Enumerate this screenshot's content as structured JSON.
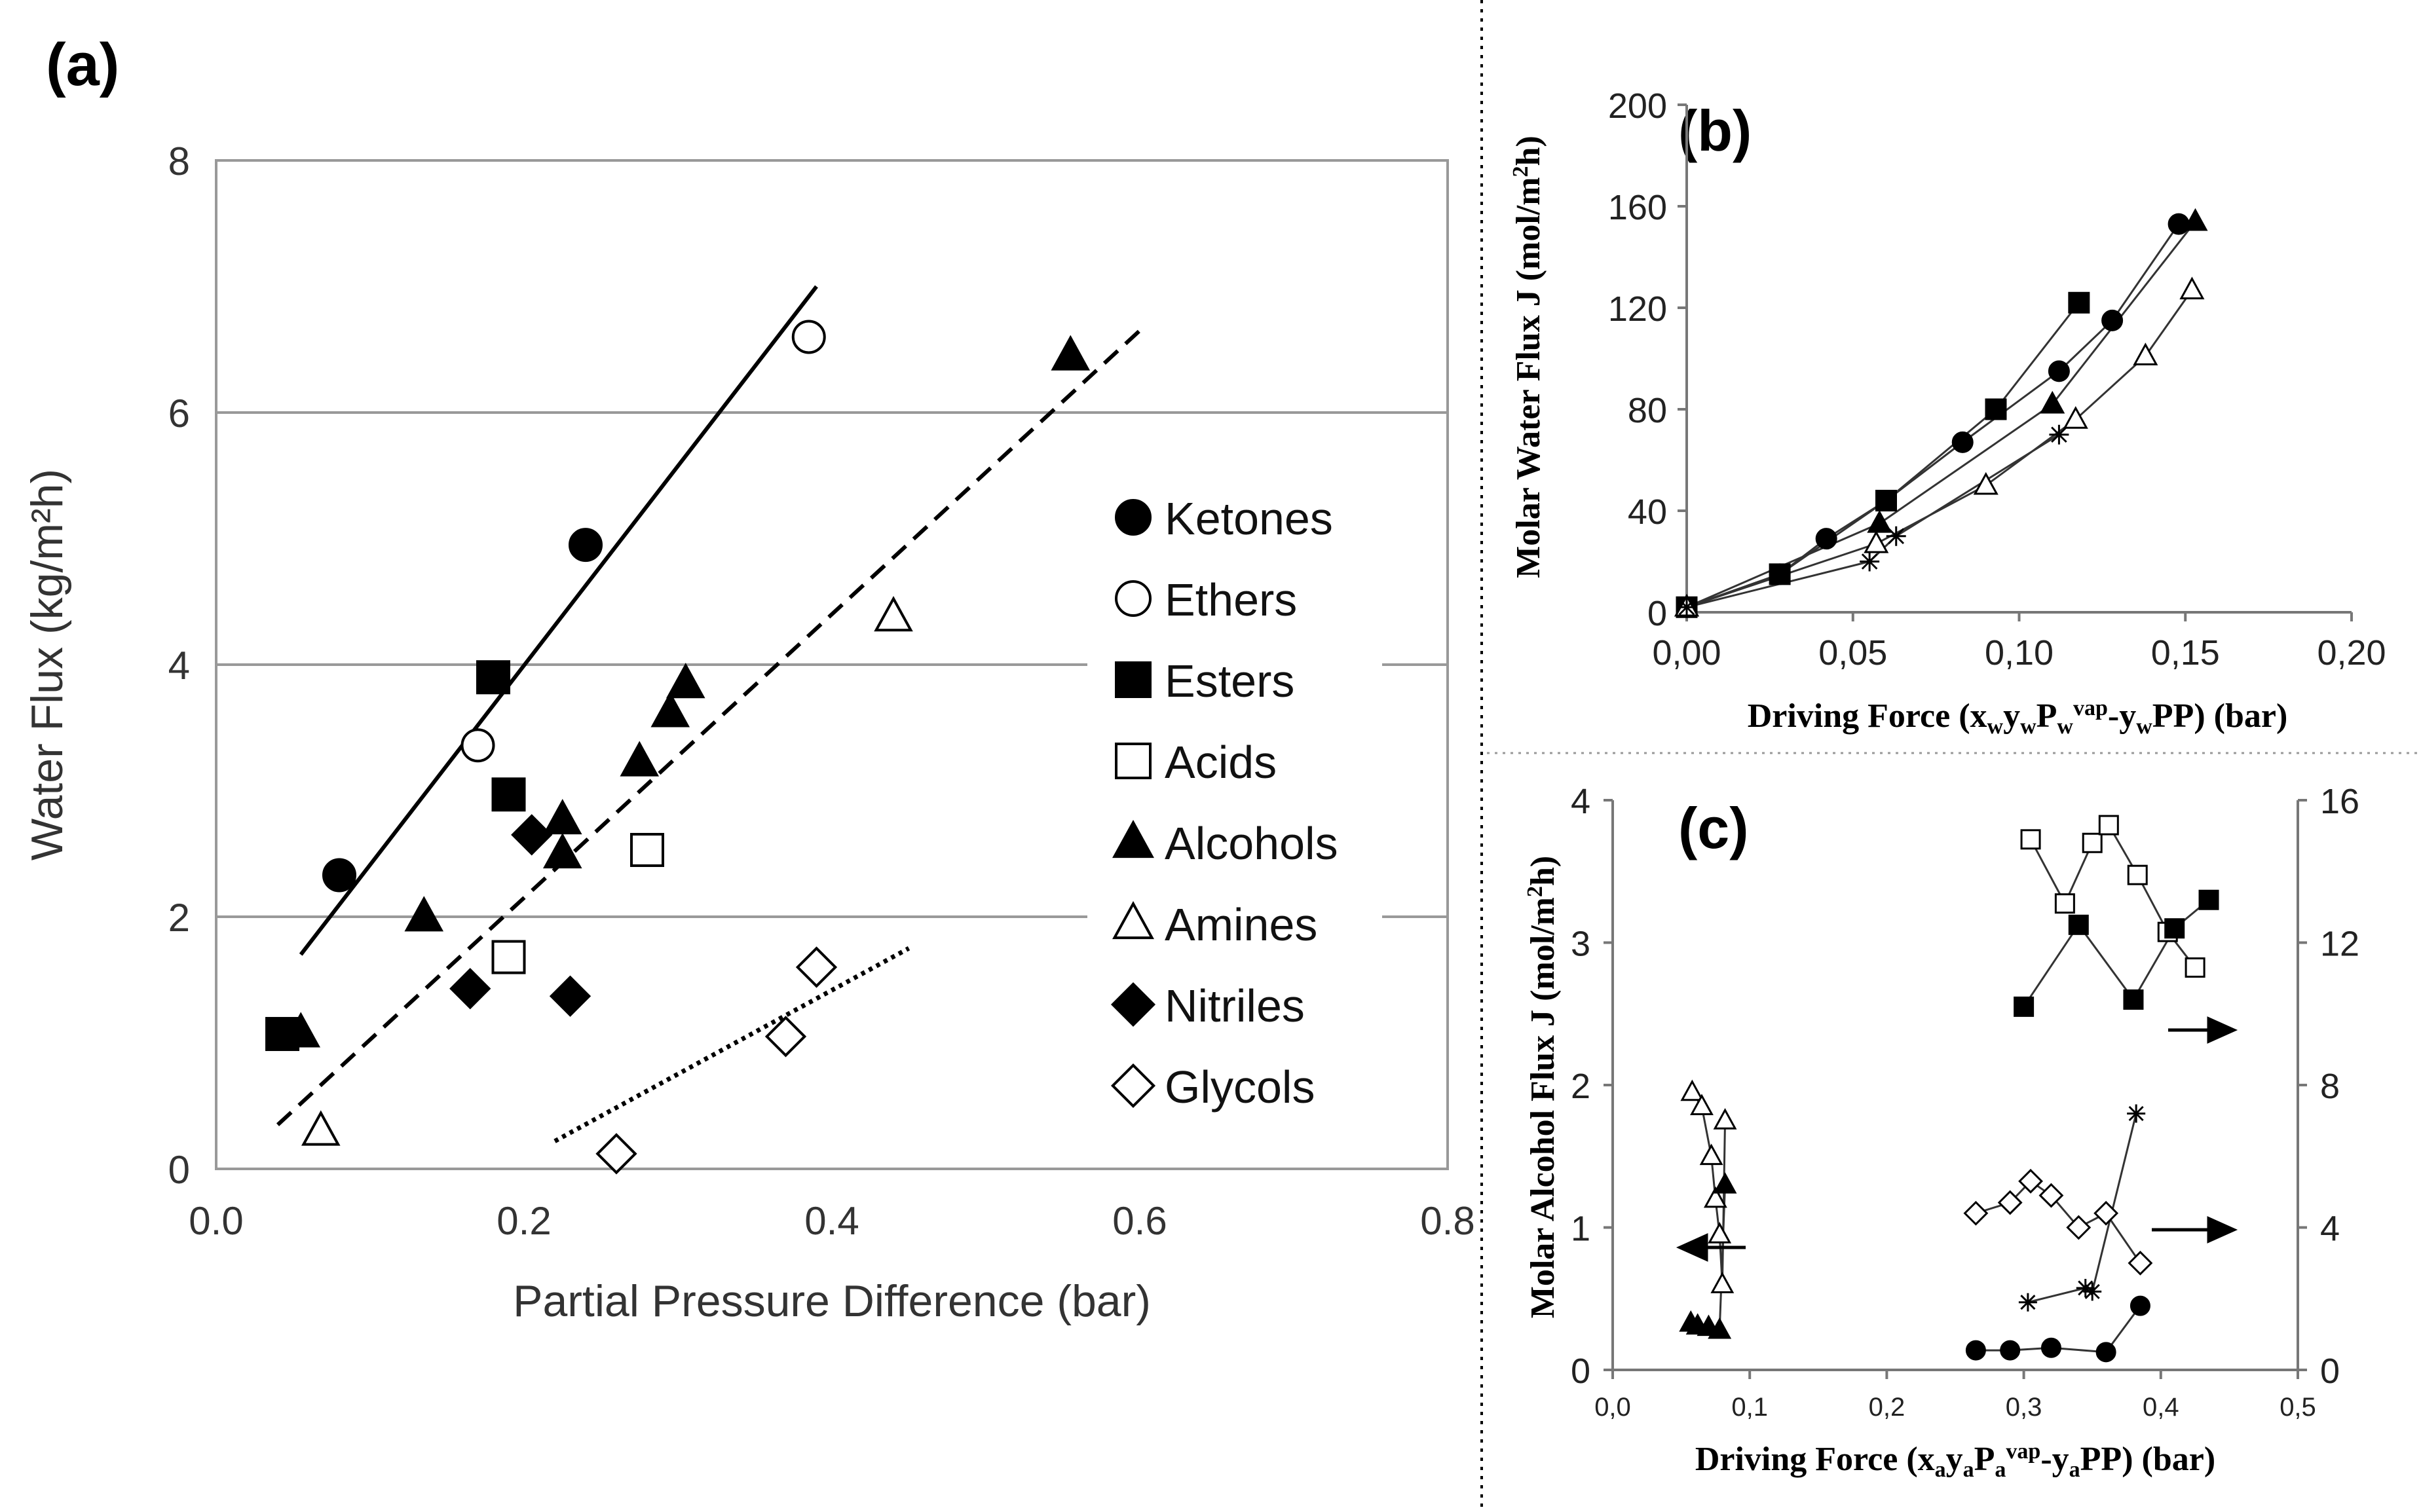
{
  "chart_data": [
    {
      "id": "a",
      "panel_label": "(a)",
      "type": "scatter",
      "xlabel": "Partial Pressure Difference (bar)",
      "ylabel": "Water Flux (kg/m²h)",
      "xlim": [
        0,
        0.8
      ],
      "ylim": [
        0,
        8
      ],
      "xticks": [
        "0.0",
        "0.2",
        "0.4",
        "0.6",
        "0.8"
      ],
      "yticks": [
        "0",
        "2",
        "4",
        "6",
        "8"
      ],
      "grid": "horizontal",
      "legend_position": "right",
      "series": [
        {
          "name": "Ketones",
          "marker": "circle",
          "filled": true,
          "points": [
            [
              0.08,
              2.33
            ],
            [
              0.24,
              4.95
            ]
          ]
        },
        {
          "name": "Ethers",
          "marker": "circle",
          "filled": false,
          "points": [
            [
              0.17,
              3.36
            ],
            [
              0.385,
              6.6
            ]
          ]
        },
        {
          "name": "Esters",
          "marker": "square",
          "filled": true,
          "points": [
            [
              0.043,
              1.07
            ],
            [
              0.18,
              3.9
            ],
            [
              0.19,
              2.97
            ]
          ]
        },
        {
          "name": "Acids",
          "marker": "square",
          "filled": false,
          "points": [
            [
              0.19,
              1.68
            ],
            [
              0.28,
              2.53
            ]
          ]
        },
        {
          "name": "Alcohols",
          "marker": "triangle",
          "filled": true,
          "points": [
            [
              0.055,
              1.08
            ],
            [
              0.135,
              2.0
            ],
            [
              0.225,
              2.77
            ],
            [
              0.225,
              2.5
            ],
            [
              0.275,
              3.23
            ],
            [
              0.295,
              3.62
            ],
            [
              0.305,
              3.85
            ],
            [
              0.555,
              6.45
            ]
          ]
        },
        {
          "name": "Amines",
          "marker": "triangle",
          "filled": false,
          "points": [
            [
              0.068,
              0.3
            ],
            [
              0.44,
              4.38
            ]
          ]
        },
        {
          "name": "Nitriles",
          "marker": "diamond",
          "filled": true,
          "points": [
            [
              0.165,
              1.43
            ],
            [
              0.205,
              2.65
            ],
            [
              0.23,
              1.37
            ]
          ]
        },
        {
          "name": "Glycols",
          "marker": "diamond",
          "filled": false,
          "points": [
            [
              0.26,
              0.12
            ],
            [
              0.37,
              1.05
            ],
            [
              0.39,
              1.6
            ]
          ]
        }
      ],
      "trendlines": [
        {
          "style": "solid",
          "from": [
            0.055,
            1.7
          ],
          "to": [
            0.39,
            7.0
          ]
        },
        {
          "style": "dashed",
          "from": [
            0.04,
            0.35
          ],
          "to": [
            0.6,
            6.65
          ]
        },
        {
          "style": "dotted",
          "from": [
            0.22,
            0.22
          ],
          "to": [
            0.45,
            1.75
          ]
        }
      ]
    },
    {
      "id": "b",
      "panel_label": "(b)",
      "type": "line",
      "xlabel": "Driving Force (xwywPwvap-ywPP) (bar)",
      "ylabel": "Molar Water Flux J (mol/m²h)",
      "xlim": [
        0,
        0.2
      ],
      "ylim": [
        0,
        200
      ],
      "xticks": [
        "0,00",
        "0,05",
        "0,10",
        "0,15",
        "0,20"
      ],
      "yticks": [
        "0",
        "40",
        "80",
        "120",
        "160",
        "200"
      ],
      "grid": "none",
      "series": [
        {
          "name": "filled circle",
          "marker": "circle",
          "filled": true,
          "points": [
            [
              0,
              2
            ],
            [
              0.028,
              15
            ],
            [
              0.042,
              29
            ],
            [
              0.06,
              44
            ],
            [
              0.083,
              67
            ],
            [
              0.112,
              95
            ],
            [
              0.128,
              115
            ],
            [
              0.148,
              153
            ]
          ]
        },
        {
          "name": "filled square",
          "marker": "square",
          "filled": true,
          "points": [
            [
              0,
              2
            ],
            [
              0.028,
              15
            ],
            [
              0.06,
              44
            ],
            [
              0.093,
              80
            ],
            [
              0.118,
              122
            ]
          ]
        },
        {
          "name": "filled triangle",
          "marker": "triangle",
          "filled": true,
          "points": [
            [
              0,
              2
            ],
            [
              0.058,
              35
            ],
            [
              0.11,
              82
            ],
            [
              0.153,
              154
            ]
          ]
        },
        {
          "name": "open triangle",
          "marker": "triangle",
          "filled": false,
          "points": [
            [
              0,
              2
            ],
            [
              0.057,
              27
            ],
            [
              0.09,
              50
            ],
            [
              0.117,
              76
            ],
            [
              0.138,
              101
            ],
            [
              0.152,
              127
            ]
          ]
        },
        {
          "name": "star",
          "marker": "star",
          "filled": false,
          "points": [
            [
              0,
              2
            ],
            [
              0.055,
              20
            ],
            [
              0.063,
              30
            ],
            [
              0.112,
              70
            ]
          ]
        }
      ]
    },
    {
      "id": "c",
      "panel_label": "(c)",
      "type": "line",
      "xlabel": "Driving Force (xayaPavap-yaPP) (bar)",
      "ylabel": "Molar Alcohol Flux J (mol/m²h)",
      "xlim": [
        0,
        0.5
      ],
      "ylim": [
        0,
        4
      ],
      "y2lim": [
        0,
        16
      ],
      "xticks": [
        "0,0",
        "0,1",
        "0,2",
        "0,3",
        "0,4",
        "0,5"
      ],
      "yticks": [
        "0",
        "1",
        "2",
        "3",
        "4"
      ],
      "y2ticks": [
        "0",
        "4",
        "8",
        "12",
        "16"
      ],
      "grid": "none",
      "annotations": [
        "left arrow: open/filled triangle series use left axis",
        "right arrows: square, circle, diamond and star series use right axis"
      ],
      "series": [
        {
          "name": "open triangle",
          "axis": "left",
          "marker": "triangle",
          "filled": false,
          "points": [
            [
              0.058,
              1.95
            ],
            [
              0.065,
              1.85
            ],
            [
              0.072,
              1.5
            ],
            [
              0.075,
              1.2
            ],
            [
              0.078,
              0.95
            ],
            [
              0.08,
              0.6
            ],
            [
              0.082,
              1.75
            ]
          ]
        },
        {
          "name": "filled triangle",
          "axis": "left",
          "marker": "triangle",
          "filled": true,
          "points": [
            [
              0.057,
              0.33
            ],
            [
              0.062,
              0.31
            ],
            [
              0.07,
              0.3
            ],
            [
              0.078,
              0.28
            ],
            [
              0.082,
              1.3
            ]
          ]
        },
        {
          "name": "open square",
          "axis": "right",
          "marker": "square",
          "filled": false,
          "points": [
            [
              0.305,
              14.9
            ],
            [
              0.33,
              13.1
            ],
            [
              0.35,
              14.8
            ],
            [
              0.362,
              15.3
            ],
            [
              0.383,
              13.9
            ],
            [
              0.405,
              12.3
            ],
            [
              0.425,
              11.3
            ]
          ]
        },
        {
          "name": "filled square",
          "axis": "right",
          "marker": "square",
          "filled": true,
          "points": [
            [
              0.3,
              10.2
            ],
            [
              0.34,
              12.5
            ],
            [
              0.38,
              10.4
            ],
            [
              0.41,
              12.4
            ],
            [
              0.435,
              13.2
            ]
          ]
        },
        {
          "name": "open diamond",
          "axis": "right",
          "marker": "diamond",
          "filled": false,
          "points": [
            [
              0.265,
              4.4
            ],
            [
              0.29,
              4.7
            ],
            [
              0.305,
              5.3
            ],
            [
              0.32,
              4.9
            ],
            [
              0.34,
              4.0
            ],
            [
              0.36,
              4.4
            ],
            [
              0.385,
              3.0
            ]
          ]
        },
        {
          "name": "star",
          "axis": "right",
          "marker": "star",
          "filled": false,
          "points": [
            [
              0.303,
              1.9
            ],
            [
              0.345,
              2.3
            ],
            [
              0.35,
              2.2
            ],
            [
              0.382,
              7.2
            ]
          ]
        },
        {
          "name": "filled circle",
          "axis": "right",
          "marker": "circle",
          "filled": true,
          "points": [
            [
              0.265,
              0.55
            ],
            [
              0.29,
              0.55
            ],
            [
              0.32,
              0.62
            ],
            [
              0.36,
              0.5
            ],
            [
              0.385,
              1.8
            ]
          ]
        }
      ]
    }
  ]
}
